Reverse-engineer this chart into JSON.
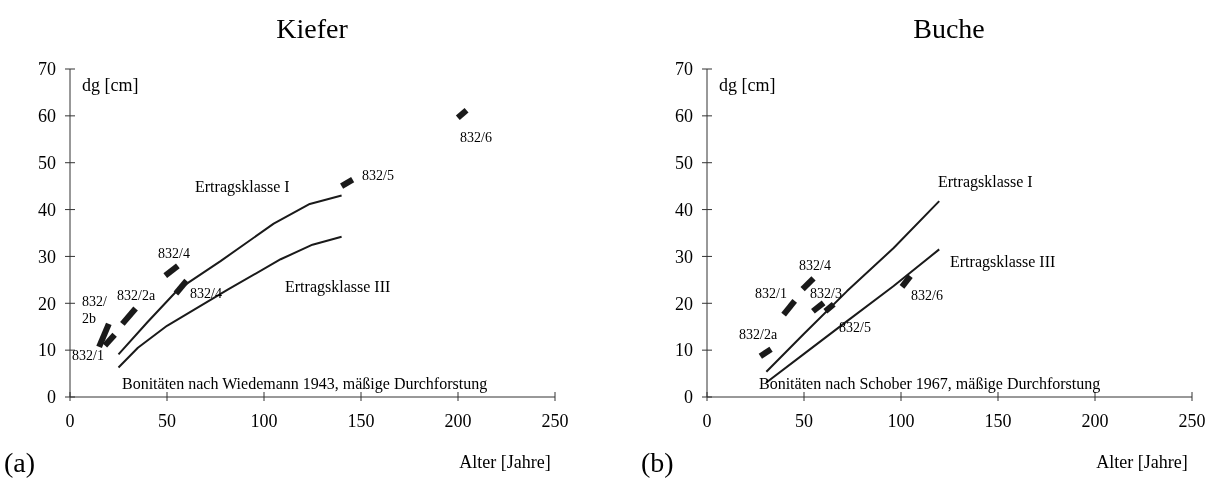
{
  "chart_data": [
    {
      "type": "line",
      "title": "Kiefer",
      "xlabel": "Alter [Jahre]",
      "ylabel": "dg [cm]",
      "xlim": [
        0,
        250
      ],
      "xticks": [
        0,
        50,
        100,
        150,
        200,
        250
      ],
      "ylim": [
        0,
        70
      ],
      "yticks": [
        0,
        10,
        20,
        30,
        40,
        50,
        60,
        70
      ],
      "annotations": [
        "(a)",
        "Bonitäten nach Wiedemann 1943, mäßige Durchforstung"
      ],
      "series": [
        {
          "name": "Ertragsklasse I",
          "color": "#1a1a1a",
          "x": [
            25,
            40,
            55.6,
            77.6,
            105,
            123.6,
            140
          ],
          "values": [
            9.1,
            16,
            22.9,
            29,
            37,
            41.2,
            43
          ]
        },
        {
          "name": "Ertragsklasse III",
          "color": "#1a1a1a",
          "x": [
            25,
            35,
            50,
            81.3,
            108.6,
            125,
            140
          ],
          "values": [
            6.3,
            10.5,
            15.2,
            22.9,
            29.4,
            32.5,
            34.2
          ]
        },
        {
          "name": "832/2b",
          "color": "#1a1a1a",
          "x": [
            15,
            20
          ],
          "values": [
            10.7,
            15.6
          ]
        },
        {
          "name": "832/1",
          "color": "#1a1a1a",
          "x": [
            18,
            23
          ],
          "values": [
            11,
            13.3
          ]
        },
        {
          "name": "832/2a",
          "color": "#1a1a1a",
          "x": [
            27,
            33.8
          ],
          "values": [
            15.6,
            18.9
          ]
        },
        {
          "name": "832/4",
          "color": "#1a1a1a",
          "x": [
            49.1,
            55.6
          ],
          "values": [
            25.9,
            28
          ]
        },
        {
          "name": "832/4",
          "color": "#1a1a1a",
          "x": [
            54.6,
            60.1
          ],
          "values": [
            22.1,
            24.8
          ]
        },
        {
          "name": "832/5",
          "color": "#1a1a1a",
          "x": [
            140,
            145.7
          ],
          "values": [
            45,
            46.4
          ]
        },
        {
          "name": "832/6",
          "color": "#1a1a1a",
          "x": [
            199.9,
            204.4
          ],
          "values": [
            59.6,
            61.2
          ]
        }
      ]
    },
    {
      "type": "line",
      "title": "Buche",
      "xlabel": "Alter [Jahre]",
      "ylabel": "dg [cm]",
      "xlim": [
        0,
        250
      ],
      "xticks": [
        0,
        50,
        100,
        150,
        200,
        250
      ],
      "ylim": [
        0,
        70
      ],
      "yticks": [
        0,
        10,
        20,
        30,
        40,
        50,
        60,
        70
      ],
      "annotations": [
        "(b)",
        "Bonitäten nach Schober 1967, mäßige Durchforstung"
      ],
      "series": [
        {
          "name": "Ertragsklasse I",
          "color": "#1a1a1a",
          "x": [
            30.6,
            50,
            72.2,
            96.2,
            119.7
          ],
          "values": [
            5.4,
            13.5,
            22.6,
            31.8,
            41.8
          ]
        },
        {
          "name": "Ertragsklasse III",
          "color": "#1a1a1a",
          "x": [
            30.6,
            50,
            72.2,
            96.2,
            119.7
          ],
          "values": [
            3.1,
            9.2,
            16.2,
            23.7,
            31.5
          ]
        },
        {
          "name": "832/2a",
          "color": "#1a1a1a",
          "x": [
            27.5,
            33
          ],
          "values": [
            8.7,
            10.2
          ]
        },
        {
          "name": "832/1",
          "color": "#1a1a1a",
          "x": [
            39.5,
            45.2
          ],
          "values": [
            17.6,
            20.5
          ]
        },
        {
          "name": "832/4",
          "color": "#1a1a1a",
          "x": [
            49.3,
            54.9
          ],
          "values": [
            23,
            25.3
          ]
        },
        {
          "name": "832/3",
          "color": "#1a1a1a",
          "x": [
            54.6,
            60.1
          ],
          "values": [
            18.3,
            20.1
          ]
        },
        {
          "name": "832/5",
          "color": "#1a1a1a",
          "x": [
            61,
            65.3
          ],
          "values": [
            18.3,
            19.8
          ]
        },
        {
          "name": "832/6",
          "color": "#1a1a1a",
          "x": [
            100.5,
            104.8
          ],
          "values": [
            23.5,
            25.8
          ]
        }
      ]
    }
  ]
}
